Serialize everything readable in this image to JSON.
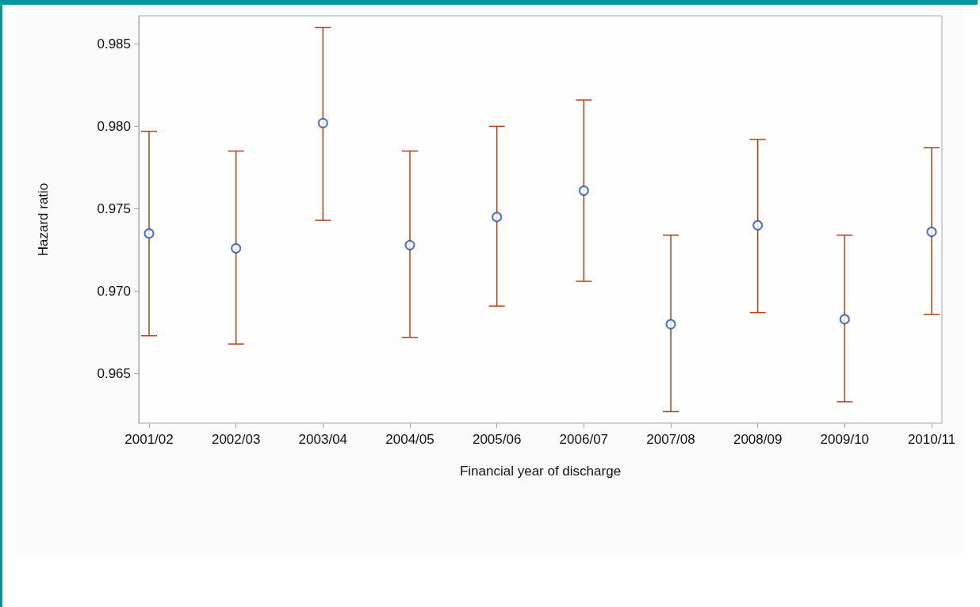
{
  "chart_data": {
    "type": "scatter",
    "xlabel": "Financial year of discharge",
    "ylabel": "Hazard ratio",
    "categories": [
      "2001/02",
      "2002/03",
      "2003/04",
      "2004/05",
      "2005/06",
      "2006/07",
      "2007/08",
      "2008/09",
      "2009/10",
      "2010/11"
    ],
    "series": [
      {
        "color": "#1f4fb5",
        "values": [
          0.9735,
          0.9726,
          0.9802,
          0.9728,
          0.9745,
          0.9761,
          0.968,
          0.974,
          0.9683,
          0.9736
        ],
        "errors": [
          [
            0.9673,
            0.9797
          ],
          [
            0.9668,
            0.9785
          ],
          [
            0.9743,
            0.986
          ],
          [
            0.9672,
            0.9785
          ],
          [
            0.9691,
            0.98
          ],
          [
            0.9706,
            0.9816
          ],
          [
            0.9627,
            0.9734
          ],
          [
            0.9687,
            0.9792
          ],
          [
            0.9633,
            0.9734
          ],
          [
            0.9686,
            0.9787
          ]
        ]
      }
    ],
    "ylim": [
      0.962,
      0.9867
    ],
    "yticks": [
      {
        "value": 0.965,
        "label": "0.965"
      },
      {
        "value": 0.97,
        "label": "0.970"
      },
      {
        "value": 0.975,
        "label": "0.975"
      },
      {
        "value": 0.98,
        "label": "0.980"
      },
      {
        "value": 0.985,
        "label": "0.985"
      }
    ],
    "grid": false,
    "marker": "circle"
  }
}
